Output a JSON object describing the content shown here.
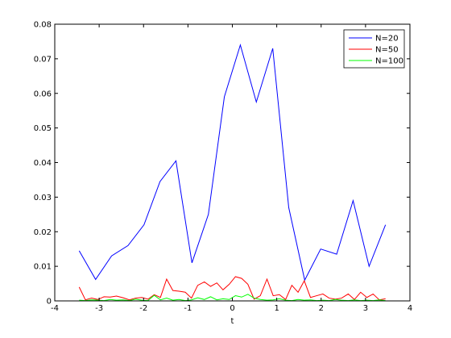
{
  "chart_data": {
    "type": "line",
    "title": "",
    "xlabel": "t",
    "ylabel": "",
    "xlim": [
      -4,
      4
    ],
    "ylim": [
      0,
      0.08
    ],
    "x_ticks": [
      -4,
      -3,
      -2,
      -1,
      0,
      1,
      2,
      3,
      4
    ],
    "x_tick_labels": [
      "-4",
      "-3",
      "-2",
      "-1",
      "0",
      "1",
      "2",
      "3",
      "4"
    ],
    "y_ticks": [
      0,
      0.01,
      0.02,
      0.03,
      0.04,
      0.05,
      0.06,
      0.07,
      0.08
    ],
    "y_tick_labels": [
      "0",
      "0.01",
      "0.02",
      "0.03",
      "0.04",
      "0.05",
      "0.06",
      "0.07",
      "0.08"
    ],
    "grid": false,
    "legend_position": "top-right",
    "series": [
      {
        "name": "N=20",
        "color": "#0000ff",
        "x": [
          -3.45,
          -3.08,
          -2.72,
          -2.35,
          -1.99,
          -1.63,
          -1.27,
          -0.91,
          -0.54,
          -0.18,
          0.18,
          0.54,
          0.91,
          1.27,
          1.63,
          1.99,
          2.35,
          2.72,
          3.08,
          3.45
        ],
        "y": [
          0.0145,
          0.0062,
          0.013,
          0.016,
          0.022,
          0.0345,
          0.0405,
          0.011,
          0.025,
          0.059,
          0.074,
          0.0575,
          0.073,
          0.027,
          0.006,
          0.015,
          0.0135,
          0.029,
          0.01,
          0.022
        ]
      },
      {
        "name": "N=50",
        "color": "#ff0000",
        "x": [
          -3.45,
          -3.31,
          -3.17,
          -3.03,
          -2.89,
          -2.75,
          -2.61,
          -2.46,
          -2.32,
          -2.18,
          -2.04,
          -1.9,
          -1.76,
          -1.62,
          -1.48,
          -1.34,
          -1.2,
          -1.06,
          -0.92,
          -0.78,
          -0.63,
          -0.49,
          -0.35,
          -0.21,
          -0.07,
          0.07,
          0.21,
          0.35,
          0.49,
          0.63,
          0.78,
          0.92,
          1.06,
          1.2,
          1.34,
          1.48,
          1.62,
          1.76,
          1.9,
          2.04,
          2.18,
          2.32,
          2.46,
          2.61,
          2.75,
          2.89,
          3.03,
          3.17,
          3.31,
          3.45
        ],
        "y": [
          0.004,
          0.0003,
          0.0008,
          0.0004,
          0.0012,
          0.0011,
          0.0014,
          0.0009,
          0.0003,
          0.0008,
          0.001,
          0.0005,
          0.0018,
          0.001,
          0.0063,
          0.003,
          0.0028,
          0.0025,
          0.0008,
          0.0045,
          0.0055,
          0.0042,
          0.0052,
          0.0032,
          0.0048,
          0.007,
          0.0065,
          0.0048,
          0.0005,
          0.0015,
          0.0063,
          0.0015,
          0.0018,
          0.0004,
          0.0045,
          0.0025,
          0.0058,
          0.001,
          0.0015,
          0.002,
          0.0008,
          0.0005,
          0.0008,
          0.002,
          0.0004,
          0.0025,
          0.001,
          0.002,
          0.0003,
          0.0006
        ]
      },
      {
        "name": "N=100",
        "color": "#00ff00",
        "x": [
          -3.45,
          -3.31,
          -3.17,
          -3.03,
          -2.89,
          -2.75,
          -2.61,
          -2.46,
          -2.32,
          -2.18,
          -2.04,
          -1.9,
          -1.76,
          -1.62,
          -1.48,
          -1.34,
          -1.2,
          -1.06,
          -0.92,
          -0.78,
          -0.63,
          -0.49,
          -0.35,
          -0.21,
          -0.07,
          0.07,
          0.21,
          0.35,
          0.49,
          0.63,
          0.78,
          0.92,
          1.06,
          1.2,
          1.34,
          1.48,
          1.62,
          1.76,
          1.9,
          2.04,
          2.18,
          2.32,
          2.46,
          2.61,
          2.75,
          2.89,
          3.03,
          3.17,
          3.31,
          3.45
        ],
        "y": [
          0.0002,
          0.0001,
          0.0003,
          0.0002,
          0.0001,
          0.0004,
          0.0002,
          0.0003,
          0.0001,
          0.0005,
          0.0002,
          0.0001,
          0.0016,
          0.0003,
          0.0008,
          0.0002,
          0.0004,
          0.0001,
          0.0003,
          0.0009,
          0.0004,
          0.0012,
          0.0003,
          0.0006,
          0.0004,
          0.0015,
          0.0011,
          0.0019,
          0.0008,
          0.0004,
          0.0002,
          0.0003,
          0.0006,
          0.0002,
          0.0001,
          0.0004,
          0.0002,
          0.0003,
          0.0001,
          0.0002,
          0.0001,
          0.0004,
          0.0002,
          0.0001,
          0.0003,
          0.0001,
          0.0002,
          0.0001,
          0.0003,
          0.0001
        ]
      }
    ]
  }
}
